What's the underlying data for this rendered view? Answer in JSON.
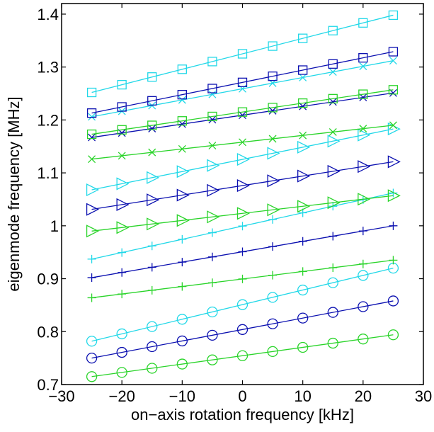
{
  "chart_data": {
    "type": "line",
    "title": "",
    "xlabel": "on−axis rotation frequency [kHz]",
    "ylabel": "eigenmode frequency [MHz]",
    "xlim": [
      -30,
      30
    ],
    "ylim": [
      0.7,
      1.42
    ],
    "xticks": [
      -30,
      -20,
      -10,
      0,
      10,
      20,
      30
    ],
    "xtick_labels": [
      "−30",
      "−20",
      "−10",
      "0",
      "10",
      "20",
      "30"
    ],
    "yticks": [
      0.7,
      0.8,
      0.9,
      1.0,
      1.1,
      1.2,
      1.3,
      1.4
    ],
    "ytick_labels": [
      "0.7",
      "0.8",
      "0.9",
      "1",
      "1.1",
      "1.2",
      "1.3",
      "1.4"
    ],
    "grid": false,
    "legend": "none",
    "colors": {
      "cyan": "#22d8e8",
      "blue": "#0b10b0",
      "green": "#2ad42a"
    },
    "x": [
      -25,
      -20,
      -15,
      -10,
      -5,
      0,
      5,
      10,
      15,
      20,
      25
    ],
    "series": [
      {
        "color": "cyan",
        "marker": "circle",
        "y_start": 0.782,
        "y_end": 0.92
      },
      {
        "color": "blue",
        "marker": "circle",
        "y_start": 0.75,
        "y_end": 0.858
      },
      {
        "color": "green",
        "marker": "circle",
        "y_start": 0.715,
        "y_end": 0.794
      },
      {
        "color": "cyan",
        "marker": "plus",
        "y_start": 0.937,
        "y_end": 1.062
      },
      {
        "color": "blue",
        "marker": "plus",
        "y_start": 0.902,
        "y_end": 1.0
      },
      {
        "color": "green",
        "marker": "plus",
        "y_start": 0.864,
        "y_end": 0.935
      },
      {
        "color": "cyan",
        "marker": "triangle",
        "y_start": 1.068,
        "y_end": 1.183
      },
      {
        "color": "blue",
        "marker": "triangle",
        "y_start": 1.031,
        "y_end": 1.121
      },
      {
        "color": "green",
        "marker": "triangle",
        "y_start": 0.99,
        "y_end": 1.057
      },
      {
        "color": "cyan",
        "marker": "x",
        "y_start": 1.206,
        "y_end": 1.312
      },
      {
        "color": "blue",
        "marker": "x",
        "y_start": 1.167,
        "y_end": 1.251
      },
      {
        "color": "green",
        "marker": "x",
        "y_start": 1.126,
        "y_end": 1.19
      },
      {
        "color": "cyan",
        "marker": "square",
        "y_start": 1.252,
        "y_end": 1.398
      },
      {
        "color": "blue",
        "marker": "square",
        "y_start": 1.213,
        "y_end": 1.329
      },
      {
        "color": "green",
        "marker": "square",
        "y_start": 1.173,
        "y_end": 1.257
      }
    ]
  }
}
